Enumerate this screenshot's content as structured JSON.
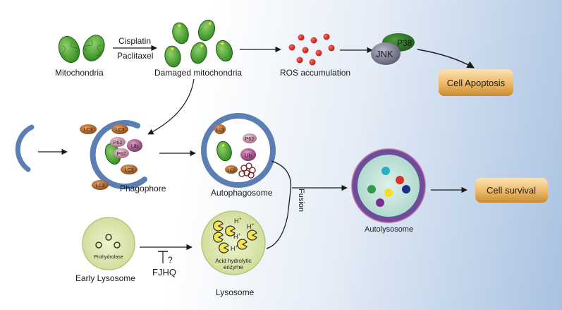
{
  "labels": {
    "mitochondria": "Mitochondria",
    "cisplatin": "Cisplatin",
    "paclitaxel": "Paclitaxel",
    "damaged_mitochondria": "Damaged mitochondria",
    "ros_accumulation": "ROS accumulation",
    "p38": "P38",
    "jnk": "JNK",
    "cell_apoptosis": "Cell Apoptosis",
    "phagophore": "Phagophore",
    "autophagosome": "Autophagosome",
    "fusion": "Fusion",
    "autolysosome": "Autolysosome",
    "cell_survival": "Cell survival",
    "early_lysosome": "Early Lysosome",
    "prohydrolase": "Prohydrolase",
    "fjhq": "FJHQ",
    "question": "?",
    "lysosome": "Lysosome",
    "acid_line1": "Acid hydrolytic",
    "acid_line2": "enzyme",
    "lc3": "LC3",
    "p62": "P62",
    "ub": "Ub",
    "h_plus": "H"
  },
  "colors": {
    "mito_green": "#4caf35",
    "ros_red": "#d0201e",
    "vesicle_blue": "#5b7fb3",
    "lc3_brown": "#b8692a",
    "p62_pink": "#c98aa6",
    "ub_purple": "#a0508a",
    "lysosome_fill": "#dfe9b8",
    "pill_orange": "#e9b566"
  }
}
